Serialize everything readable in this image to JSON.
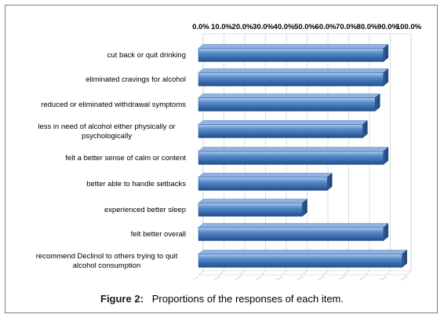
{
  "chart_data": {
    "type": "bar",
    "orientation": "horizontal",
    "categories": [
      "cut back or quit drinking",
      "eliminated cravings for alcohol",
      "reduced or eliminated withdrawal symptoms",
      "less in need of alcohol either physically or psychologically",
      "felt a better sense of calm or content",
      "better able to handle setbacks",
      "experienced better sleep",
      "felt better overall",
      "recommend Declinol to others trying to quit alcohol consumption"
    ],
    "category_label_lines": [
      [
        "cut back or quit drinking"
      ],
      [
        "eliminated cravings for alcohol"
      ],
      [
        "reduced or eliminated withdrawal symptoms"
      ],
      [
        "less in need of alcohol either physically or",
        "psychologically"
      ],
      [
        "felt a better sense of calm or content"
      ],
      [
        "better able to handle setbacks"
      ],
      [
        "experienced better sleep"
      ],
      [
        "felt better overall"
      ],
      [
        "recommend Declinol to others trying to quit",
        "alcohol consumption"
      ]
    ],
    "values": [
      0.89,
      0.89,
      0.85,
      0.79,
      0.89,
      0.62,
      0.5,
      0.89,
      0.98
    ],
    "xlim": [
      0,
      1
    ],
    "ticks": [
      "0.0%",
      "10.0%",
      "20.0%",
      "30.0%",
      "40.0%",
      "50.0%",
      "60.0%",
      "70.0%",
      "80.0%",
      "90.0%",
      "100.0%"
    ],
    "axis_position": "top",
    "grid": true,
    "style": "3d",
    "bar_color": "#4f81bd",
    "title": "",
    "xlabel": "",
    "ylabel": ""
  },
  "caption": {
    "label": "Figure 2:",
    "text": "Proportions of the responses of each item."
  }
}
